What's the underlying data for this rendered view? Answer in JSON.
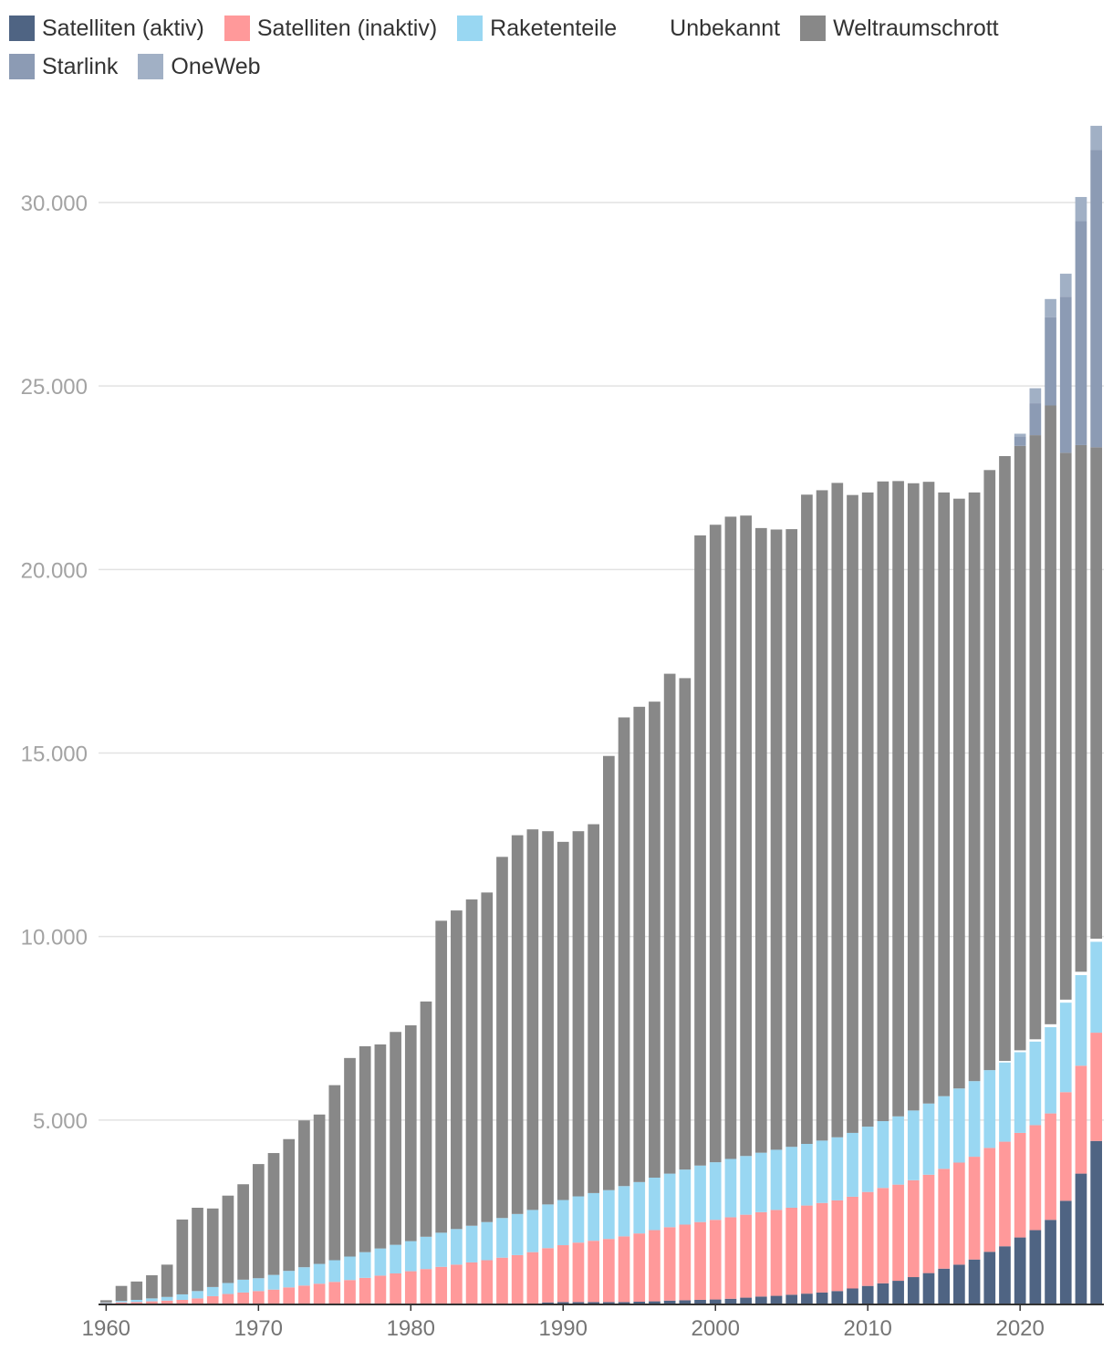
{
  "chart_data": {
    "type": "bar",
    "stacked": true,
    "xlabel": "",
    "ylabel": "",
    "ylim": [
      0,
      32000
    ],
    "yticks": [
      5000,
      10000,
      15000,
      20000,
      25000,
      30000
    ],
    "ytick_labels": [
      "5.000",
      "10.000",
      "15.000",
      "20.000",
      "25.000",
      "30.000"
    ],
    "xticks": [
      1960,
      1970,
      1980,
      1990,
      2000,
      2010,
      2020
    ],
    "xtick_labels": [
      "1960",
      "1970",
      "1980",
      "1990",
      "2000",
      "2010",
      "2020"
    ],
    "grid": true,
    "legend_position": "top-left",
    "legend": [
      {
        "name": "Satelliten (aktiv)",
        "color": "#4f6483"
      },
      {
        "name": "Satelliten (inaktiv)",
        "color": "#ff999a"
      },
      {
        "name": "Raketenteile",
        "color": "#99d7f2"
      },
      {
        "name": "Unbekannt",
        "color": "#ffffff"
      },
      {
        "name": "Weltraumschrott",
        "color": "#888888"
      },
      {
        "name": "Starlink",
        "color": "#8c9bb4"
      },
      {
        "name": "OneWeb",
        "color": "#a1b0c5"
      }
    ],
    "categories": [
      1960,
      1961,
      1962,
      1963,
      1964,
      1965,
      1966,
      1967,
      1968,
      1969,
      1970,
      1971,
      1972,
      1973,
      1974,
      1975,
      1976,
      1977,
      1978,
      1979,
      1980,
      1981,
      1982,
      1983,
      1984,
      1985,
      1986,
      1987,
      1988,
      1989,
      1990,
      1991,
      1992,
      1993,
      1994,
      1995,
      1996,
      1997,
      1998,
      1999,
      2000,
      2001,
      2002,
      2003,
      2004,
      2005,
      2006,
      2007,
      2008,
      2009,
      2010,
      2011,
      2012,
      2013,
      2014,
      2015,
      2016,
      2017,
      2018,
      2019,
      2020,
      2021,
      2022,
      2023,
      2024,
      2025
    ],
    "series": [
      {
        "name": "Satelliten (aktiv)",
        "values": [
          0,
          0,
          0,
          0,
          0,
          0,
          0,
          0,
          0,
          0,
          0,
          0,
          0,
          0,
          0,
          0,
          0,
          0,
          0,
          0,
          0,
          0,
          0,
          0,
          0,
          0,
          0,
          0,
          0,
          30,
          40,
          40,
          40,
          40,
          40,
          50,
          60,
          80,
          90,
          100,
          110,
          130,
          160,
          190,
          210,
          240,
          270,
          300,
          340,
          410,
          480,
          550,
          620,
          720,
          830,
          950,
          1060,
          1200,
          1410,
          1560,
          1800,
          2000,
          2280,
          2800,
          3540,
          4430
        ]
      },
      {
        "name": "Satelliten (inaktiv)",
        "values": [
          10,
          30,
          40,
          60,
          80,
          100,
          140,
          200,
          260,
          300,
          340,
          380,
          440,
          490,
          540,
          590,
          640,
          700,
          760,
          820,
          880,
          940,
          1000,
          1060,
          1120,
          1180,
          1250,
          1320,
          1400,
          1480,
          1550,
          1620,
          1670,
          1720,
          1790,
          1860,
          1940,
          2000,
          2060,
          2120,
          2170,
          2220,
          2260,
          2300,
          2340,
          2370,
          2400,
          2440,
          2470,
          2500,
          2560,
          2600,
          2620,
          2640,
          2680,
          2720,
          2780,
          2800,
          2830,
          2850,
          2850,
          2860,
          2900,
          2960,
          2940,
          2950
        ]
      },
      {
        "name": "Raketenteile",
        "values": [
          20,
          40,
          60,
          80,
          100,
          150,
          200,
          250,
          300,
          350,
          350,
          400,
          450,
          500,
          540,
          590,
          640,
          700,
          740,
          780,
          820,
          880,
          930,
          970,
          1000,
          1040,
          1080,
          1120,
          1150,
          1190,
          1230,
          1260,
          1300,
          1330,
          1370,
          1400,
          1430,
          1460,
          1500,
          1540,
          1570,
          1590,
          1600,
          1620,
          1640,
          1660,
          1680,
          1700,
          1720,
          1740,
          1780,
          1820,
          1860,
          1900,
          1940,
          1980,
          2020,
          2060,
          2120,
          2160,
          2200,
          2280,
          2350,
          2440,
          2470,
          2480
        ]
      },
      {
        "name": "Unbekannt",
        "values": [
          0,
          0,
          0,
          0,
          0,
          0,
          0,
          0,
          0,
          0,
          0,
          0,
          0,
          0,
          0,
          0,
          0,
          0,
          0,
          0,
          0,
          0,
          0,
          0,
          0,
          0,
          0,
          0,
          0,
          0,
          0,
          0,
          0,
          0,
          0,
          0,
          0,
          0,
          0,
          0,
          0,
          0,
          0,
          0,
          0,
          0,
          0,
          0,
          0,
          0,
          0,
          0,
          0,
          0,
          0,
          0,
          0,
          0,
          0,
          40,
          50,
          60,
          80,
          80,
          90,
          80
        ]
      },
      {
        "name": "Weltraumschrott",
        "values": [
          60,
          410,
          500,
          630,
          880,
          2040,
          2270,
          2140,
          2380,
          2600,
          3110,
          3320,
          3590,
          4000,
          4070,
          4770,
          5410,
          5610,
          5560,
          5800,
          5880,
          6410,
          8500,
          8680,
          8890,
          8980,
          9840,
          10320,
          10370,
          10170,
          9760,
          9950,
          10050,
          11830,
          12770,
          12950,
          12970,
          13620,
          13390,
          17170,
          17370,
          17500,
          17450,
          17020,
          16900,
          16830,
          17690,
          17720,
          17830,
          17380,
          17280,
          17430,
          17310,
          17090,
          16940,
          16450,
          16070,
          16040,
          16350,
          16480,
          16470,
          16460,
          16860,
          14900,
          14350,
          13390
        ]
      },
      {
        "name": "Starlink",
        "values": [
          0,
          0,
          0,
          0,
          0,
          0,
          0,
          0,
          0,
          0,
          0,
          0,
          0,
          0,
          0,
          0,
          0,
          0,
          0,
          0,
          0,
          0,
          0,
          0,
          0,
          0,
          0,
          0,
          0,
          0,
          0,
          0,
          0,
          0,
          0,
          0,
          0,
          0,
          0,
          0,
          0,
          0,
          0,
          0,
          0,
          0,
          0,
          0,
          0,
          0,
          0,
          0,
          0,
          0,
          0,
          0,
          0,
          0,
          0,
          0,
          260,
          870,
          2400,
          4250,
          6100,
          8100
        ]
      },
      {
        "name": "OneWeb",
        "values": [
          0,
          0,
          0,
          0,
          0,
          0,
          0,
          0,
          0,
          0,
          0,
          0,
          0,
          0,
          0,
          0,
          0,
          0,
          0,
          0,
          0,
          0,
          0,
          0,
          0,
          0,
          0,
          0,
          0,
          0,
          0,
          0,
          0,
          0,
          0,
          0,
          0,
          0,
          0,
          0,
          0,
          0,
          0,
          0,
          0,
          0,
          0,
          0,
          0,
          0,
          0,
          0,
          0,
          0,
          0,
          0,
          0,
          0,
          0,
          0,
          70,
          410,
          500,
          630,
          660,
          660
        ]
      }
    ]
  }
}
